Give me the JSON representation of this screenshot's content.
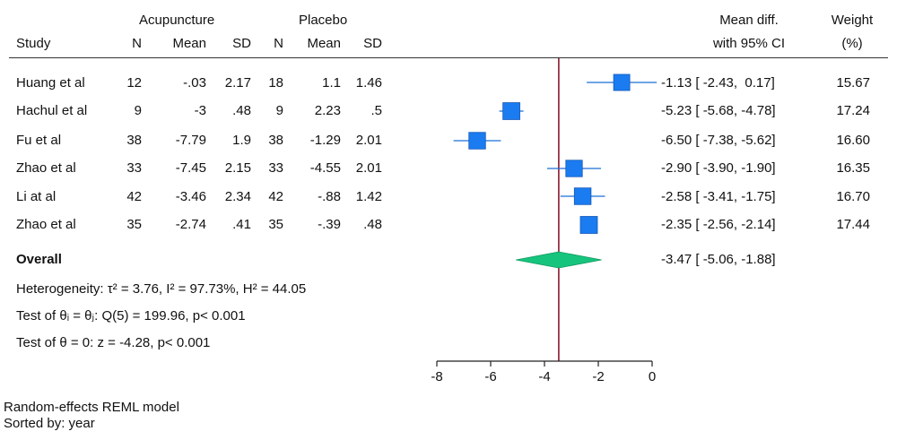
{
  "headers": {
    "group1": "Acupuncture",
    "group2": "Placebo",
    "study": "Study",
    "n": "N",
    "mean": "Mean",
    "sd": "SD",
    "effect_line1": "Mean diff.",
    "effect_line2": "with 95% CI",
    "weight_line1": "Weight",
    "weight_line2": "(%)"
  },
  "studies": [
    {
      "name": "Huang et al",
      "n1": "12",
      "mean1": "-.03",
      "sd1": "2.17",
      "n2": "18",
      "mean2": "1.1",
      "sd2": "1.46",
      "ci_text": "-1.13 [ -2.43,  0.17]",
      "weight_text": "15.67"
    },
    {
      "name": "Hachul et al",
      "n1": "9",
      "mean1": "-3",
      "sd1": ".48",
      "n2": "9",
      "mean2": "2.23",
      "sd2": ".5",
      "ci_text": "-5.23 [ -5.68, -4.78]",
      "weight_text": "17.24"
    },
    {
      "name": "Fu et al",
      "n1": "38",
      "mean1": "-7.79",
      "sd1": "1.9",
      "n2": "38",
      "mean2": "-1.29",
      "sd2": "2.01",
      "ci_text": "-6.50 [ -7.38, -5.62]",
      "weight_text": "16.60"
    },
    {
      "name": "Zhao et al",
      "n1": "33",
      "mean1": "-7.45",
      "sd1": "2.15",
      "n2": "33",
      "mean2": "-4.55",
      "sd2": "2.01",
      "ci_text": "-2.90 [ -3.90, -1.90]",
      "weight_text": "16.35"
    },
    {
      "name": "Li at al",
      "n1": "42",
      "mean1": "-3.46",
      "sd1": "2.34",
      "n2": "42",
      "mean2": "-.88",
      "sd2": "1.42",
      "ci_text": "-2.58 [ -3.41, -1.75]",
      "weight_text": "16.70"
    },
    {
      "name": "Zhao et al",
      "n1": "35",
      "mean1": "-2.74",
      "sd1": ".41",
      "n2": "35",
      "mean2": "-.39",
      "sd2": ".48",
      "ci_text": "-2.35 [ -2.56, -2.14]",
      "weight_text": "17.44"
    }
  ],
  "overall": {
    "label": "Overall",
    "ci_text": "-3.47 [ -5.06, -1.88]"
  },
  "stats": {
    "heterogeneity": "Heterogeneity: τ² = 3.76, I² = 97.73%, H² = 44.05",
    "test_equal": "Test of θᵢ = θⱼ: Q(5) = 199.96, p< 0.001",
    "test_zero": "Test of θ = 0: z = -4.28, p< 0.001"
  },
  "footer": {
    "model": "Random-effects REML model",
    "sorted": "Sorted by: year"
  },
  "chart_data": {
    "type": "forest",
    "title": "",
    "xlabel": "",
    "ylabel": "",
    "xlim": [
      -8,
      0
    ],
    "xticks": [
      "-8",
      "-6",
      "-4",
      "-2",
      "0"
    ],
    "studies": [
      "Huang et al",
      "Hachul et al",
      "Fu et al",
      "Zhao et al",
      "Li at al",
      "Zhao et al"
    ],
    "estimates": [
      -1.13,
      -5.23,
      -6.5,
      -2.9,
      -2.58,
      -2.35
    ],
    "ci_lower": [
      -2.43,
      -5.68,
      -7.38,
      -3.9,
      -3.41,
      -2.56
    ],
    "ci_upper": [
      0.17,
      -4.78,
      -5.62,
      -1.9,
      -1.75,
      -2.14
    ],
    "weights": [
      15.67,
      17.24,
      16.6,
      16.35,
      16.7,
      17.44
    ],
    "overall": {
      "estimate": -3.47,
      "ci_lower": -5.06,
      "ci_upper": -1.88
    },
    "colors": {
      "marker": "#1a7cf0",
      "marker_edge": "#1456b8",
      "ci_line": "#1a6fd8",
      "diamond": "#17c47d",
      "ref_line": "#8b1a2e",
      "axis": "#222222"
    }
  }
}
